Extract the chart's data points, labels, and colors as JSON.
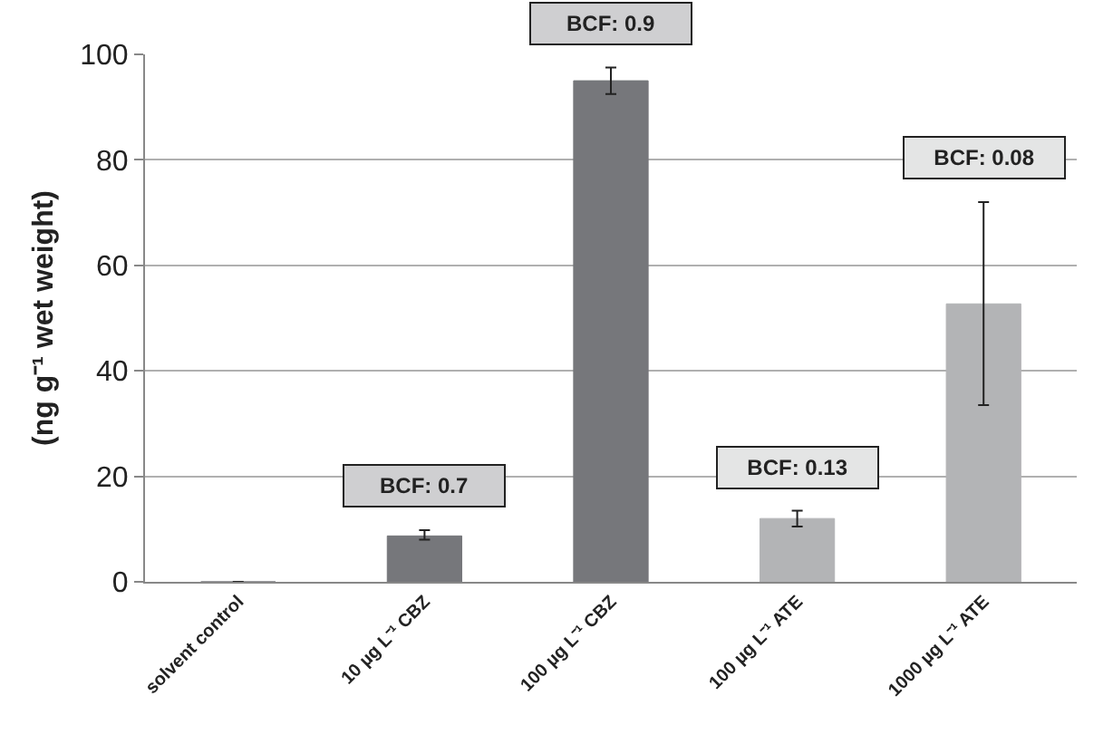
{
  "chart_data": {
    "type": "bar",
    "ylabel": "(ng g⁻¹ wet weight)",
    "categories": [
      "solvent control",
      "10 µg L⁻¹ CBZ",
      "100 µg L⁻¹ CBZ",
      "100 µg L⁻¹ ATE",
      "1000 µg L⁻¹ ATE"
    ],
    "values": [
      0,
      8.7,
      95,
      12,
      52.7
    ],
    "colors": [
      "#76777b",
      "#76777b",
      "#76777b",
      "#b3b4b6",
      "#b3b4b6"
    ],
    "errors": [
      null,
      [
        8,
        9.8
      ],
      [
        92.5,
        97.5
      ],
      [
        10.5,
        13.5
      ],
      [
        33.5,
        72
      ]
    ],
    "ylim": [
      0,
      100
    ],
    "yticks": [
      0,
      20,
      40,
      60,
      80,
      100
    ],
    "grid": "y",
    "annotations": [
      {
        "text": "BCF: 0.7",
        "x": "10 µg L⁻¹ CBZ",
        "y": 9.8
      },
      {
        "text": "BCF: 0.9",
        "x": "100 µg L⁻¹ CBZ",
        "y": 97.5
      },
      {
        "text": "BCF: 0.13",
        "x": "100 µg L⁻¹ ATE",
        "y": 13.5
      },
      {
        "text": "BCF: 0.08",
        "x": "1000 µg L⁻¹ ATE",
        "y": 72
      }
    ]
  }
}
